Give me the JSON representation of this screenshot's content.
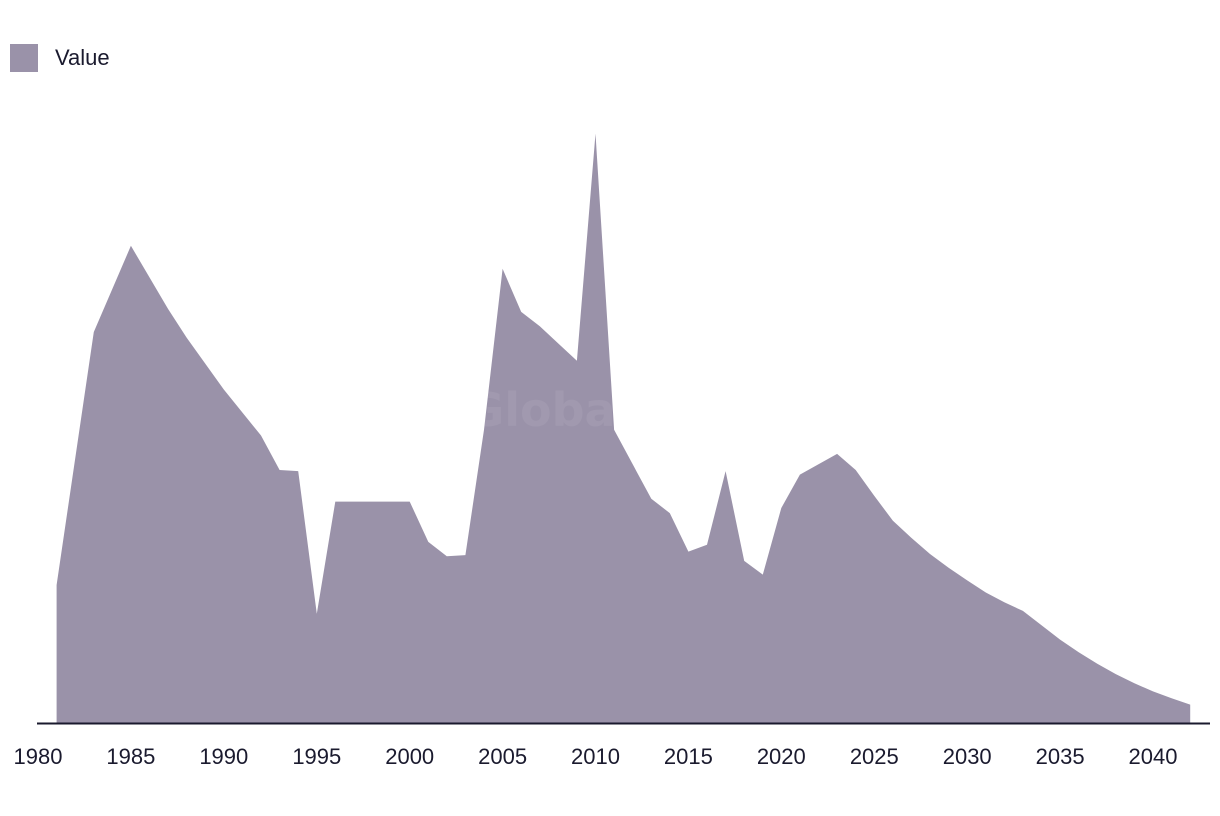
{
  "chart_data": {
    "type": "area",
    "title": "",
    "xlabel": "",
    "ylabel": "",
    "x": [
      1981,
      1983,
      1985,
      1987,
      1988,
      1990,
      1992,
      1993,
      1994,
      1995,
      1996,
      1997,
      1998,
      1999,
      2000,
      2001,
      2002,
      2003,
      2004,
      2005,
      2006,
      2007,
      2008,
      2009,
      2010,
      2011,
      2012,
      2013,
      2014,
      2015,
      2016,
      2017,
      2018,
      2019,
      2020,
      2021,
      2022,
      2023,
      2024,
      2025,
      2026,
      2027,
      2028,
      2029,
      2030,
      2031,
      2032,
      2033,
      2034,
      2035,
      2036,
      2037,
      2038,
      2039,
      2040,
      2041,
      2042
    ],
    "series": [
      {
        "name": "Value",
        "values": [
          24,
          68,
          83,
          72,
          67,
          58,
          50,
          44,
          43.8,
          19,
          38.5,
          38.5,
          38.5,
          38.5,
          38.5,
          31.5,
          29,
          29.2,
          51,
          79,
          71.5,
          69,
          66,
          63,
          102.5,
          51,
          45,
          39,
          36.5,
          29.8,
          31,
          43.8,
          28.2,
          25.8,
          37.4,
          43.2,
          45,
          46.8,
          44,
          39.5,
          35.2,
          32.2,
          29.4,
          27,
          24.8,
          22.7,
          21,
          19.5,
          17,
          14.5,
          12.3,
          10.3,
          8.5,
          6.9,
          5.5,
          4.3,
          3.2
        ]
      }
    ],
    "xlim": [
      1980,
      2043
    ],
    "ylim": [
      -4,
      108
    ],
    "xticks": [
      "1980",
      "1985",
      "1990",
      "1995",
      "2000",
      "2005",
      "2010",
      "2015",
      "2020",
      "2025",
      "2030",
      "2035",
      "2040"
    ],
    "grid": false,
    "legend": "top-left",
    "colors": {
      "area": "#9a92a9",
      "axis": "#1a1a2e",
      "text": "#1a1a2e"
    }
  },
  "watermark": "GlobalData"
}
